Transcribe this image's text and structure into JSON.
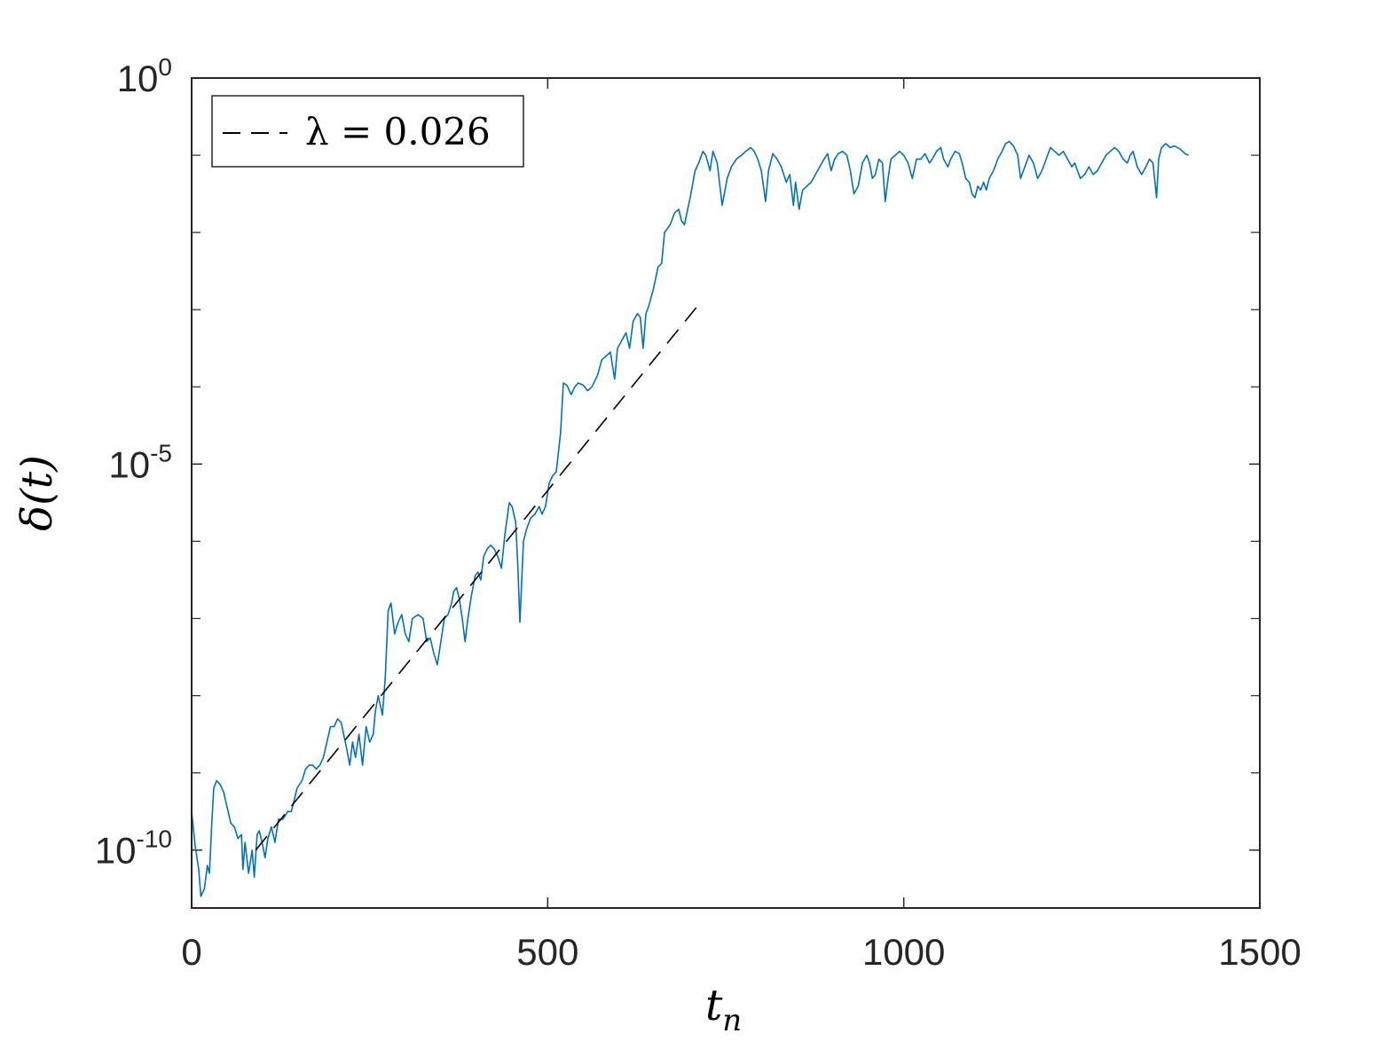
{
  "chart_data": {
    "type": "line",
    "xlabel": "t",
    "xlabel_sub": "n",
    "ylabel": "δ(t)",
    "xlim": [
      0,
      1500
    ],
    "ylim_log10": [
      -10.75,
      0
    ],
    "yscale": "log",
    "x_ticks": [
      {
        "value": 0,
        "label": "0"
      },
      {
        "value": 500,
        "label": "500"
      },
      {
        "value": 1000,
        "label": "1000"
      },
      {
        "value": 1500,
        "label": "1500"
      }
    ],
    "y_ticks": [
      {
        "log10": 0,
        "base": "10",
        "exp": "0"
      },
      {
        "log10": -5,
        "base": "10",
        "exp": "-5"
      },
      {
        "log10": -10,
        "base": "10",
        "exp": "-10"
      }
    ],
    "y_minor_log10": [
      -1,
      -2,
      -3,
      -4,
      -6,
      -7,
      -8,
      -9
    ],
    "grid": false,
    "legend": {
      "position": "top-left",
      "entries": [
        {
          "text": "λ = 0.026",
          "style": "dashed",
          "color": "#000000"
        }
      ]
    },
    "series": [
      {
        "name": "δ(t)",
        "color": "#0072BD",
        "points": [
          [
            0,
            -9.5
          ],
          [
            5,
            -9.95
          ],
          [
            10,
            -10.25
          ],
          [
            13,
            -10.6
          ],
          [
            18,
            -10.5
          ],
          [
            22,
            -10.2
          ],
          [
            25,
            -10.3
          ],
          [
            28,
            -9.7
          ],
          [
            31,
            -9.2
          ],
          [
            35,
            -9.1
          ],
          [
            40,
            -9.15
          ],
          [
            45,
            -9.25
          ],
          [
            50,
            -9.45
          ],
          [
            55,
            -9.65
          ],
          [
            60,
            -9.7
          ],
          [
            65,
            -9.85
          ],
          [
            70,
            -9.8
          ],
          [
            72,
            -10.25
          ],
          [
            75,
            -9.9
          ],
          [
            80,
            -10.3
          ],
          [
            85,
            -10.0
          ],
          [
            88,
            -10.35
          ],
          [
            92,
            -9.8
          ],
          [
            95,
            -9.75
          ],
          [
            100,
            -9.95
          ],
          [
            103,
            -10.1
          ],
          [
            107,
            -9.85
          ],
          [
            112,
            -9.7
          ],
          [
            117,
            -9.9
          ],
          [
            122,
            -9.6
          ],
          [
            128,
            -9.6
          ],
          [
            135,
            -9.5
          ],
          [
            140,
            -9.5
          ],
          [
            148,
            -9.2
          ],
          [
            155,
            -9.1
          ],
          [
            160,
            -8.95
          ],
          [
            165,
            -8.9
          ],
          [
            170,
            -8.9
          ],
          [
            175,
            -8.95
          ],
          [
            180,
            -8.9
          ],
          [
            185,
            -8.8
          ],
          [
            190,
            -8.6
          ],
          [
            195,
            -8.4
          ],
          [
            200,
            -8.4
          ],
          [
            205,
            -8.3
          ],
          [
            210,
            -8.35
          ],
          [
            218,
            -8.7
          ],
          [
            222,
            -8.9
          ],
          [
            226,
            -8.6
          ],
          [
            230,
            -8.8
          ],
          [
            235,
            -8.5
          ],
          [
            240,
            -8.9
          ],
          [
            245,
            -8.4
          ],
          [
            250,
            -8.6
          ],
          [
            255,
            -8.5
          ],
          [
            258,
            -8.2
          ],
          [
            262,
            -8.0
          ],
          [
            268,
            -8.25
          ],
          [
            272,
            -7.75
          ],
          [
            276,
            -6.9
          ],
          [
            280,
            -6.8
          ],
          [
            285,
            -7.2
          ],
          [
            290,
            -7.05
          ],
          [
            295,
            -6.95
          ],
          [
            300,
            -7.2
          ],
          [
            305,
            -7.3
          ],
          [
            310,
            -7.0
          ],
          [
            318,
            -6.95
          ],
          [
            325,
            -7.0
          ],
          [
            330,
            -7.3
          ],
          [
            335,
            -7.25
          ],
          [
            340,
            -7.45
          ],
          [
            345,
            -7.6
          ],
          [
            350,
            -7.3
          ],
          [
            355,
            -7.0
          ],
          [
            360,
            -6.95
          ],
          [
            365,
            -6.8
          ],
          [
            368,
            -6.65
          ],
          [
            372,
            -6.6
          ],
          [
            376,
            -6.75
          ],
          [
            380,
            -7.0
          ],
          [
            384,
            -7.3
          ],
          [
            388,
            -7.0
          ],
          [
            393,
            -6.7
          ],
          [
            398,
            -6.45
          ],
          [
            402,
            -6.4
          ],
          [
            406,
            -6.5
          ],
          [
            410,
            -6.2
          ],
          [
            415,
            -6.1
          ],
          [
            420,
            -6.05
          ],
          [
            425,
            -6.1
          ],
          [
            430,
            -6.2
          ],
          [
            435,
            -6.35
          ],
          [
            440,
            -5.9
          ],
          [
            446,
            -5.5
          ],
          [
            450,
            -5.55
          ],
          [
            455,
            -5.75
          ],
          [
            458,
            -6.3
          ],
          [
            461,
            -7.05
          ],
          [
            466,
            -6.0
          ],
          [
            470,
            -5.85
          ],
          [
            476,
            -5.7
          ],
          [
            482,
            -5.65
          ],
          [
            488,
            -5.55
          ],
          [
            492,
            -5.65
          ],
          [
            497,
            -5.55
          ],
          [
            502,
            -5.25
          ],
          [
            507,
            -5.15
          ],
          [
            512,
            -5.1
          ],
          [
            518,
            -4.6
          ],
          [
            522,
            -3.95
          ],
          [
            527,
            -3.98
          ],
          [
            533,
            -4.1
          ],
          [
            538,
            -4.0
          ],
          [
            543,
            -3.95
          ],
          [
            550,
            -3.98
          ],
          [
            556,
            -4.05
          ],
          [
            562,
            -4.0
          ],
          [
            570,
            -3.85
          ],
          [
            576,
            -3.65
          ],
          [
            582,
            -3.6
          ],
          [
            588,
            -3.55
          ],
          [
            594,
            -3.9
          ],
          [
            598,
            -3.5
          ],
          [
            604,
            -3.4
          ],
          [
            610,
            -3.3
          ],
          [
            615,
            -3.5
          ],
          [
            620,
            -3.15
          ],
          [
            626,
            -3.05
          ],
          [
            630,
            -3.1
          ],
          [
            634,
            -3.5
          ],
          [
            638,
            -3.05
          ],
          [
            642,
            -2.95
          ],
          [
            648,
            -2.75
          ],
          [
            655,
            -2.45
          ],
          [
            660,
            -2.4
          ],
          [
            664,
            -2.0
          ],
          [
            672,
            -1.9
          ],
          [
            678,
            -1.75
          ],
          [
            684,
            -1.7
          ],
          [
            688,
            -1.85
          ],
          [
            692,
            -1.9
          ],
          [
            700,
            -1.55
          ],
          [
            707,
            -1.2
          ],
          [
            712,
            -1.1
          ],
          [
            718,
            -0.95
          ],
          [
            722,
            -1.0
          ],
          [
            728,
            -1.2
          ],
          [
            732,
            -0.95
          ],
          [
            738,
            -1.1
          ],
          [
            745,
            -1.65
          ],
          [
            752,
            -1.3
          ],
          [
            758,
            -1.15
          ],
          [
            765,
            -1.05
          ],
          [
            772,
            -1.0
          ],
          [
            778,
            -0.95
          ],
          [
            785,
            -0.9
          ],
          [
            790,
            -0.95
          ],
          [
            795,
            -1.05
          ],
          [
            800,
            -1.2
          ],
          [
            803,
            -1.4
          ],
          [
            806,
            -1.6
          ],
          [
            810,
            -1.2
          ],
          [
            816,
            -0.98
          ],
          [
            822,
            -1.05
          ],
          [
            828,
            -1.15
          ],
          [
            835,
            -1.35
          ],
          [
            840,
            -1.25
          ],
          [
            845,
            -1.65
          ],
          [
            848,
            -1.35
          ],
          [
            853,
            -1.7
          ],
          [
            858,
            -1.45
          ],
          [
            864,
            -1.4
          ],
          [
            870,
            -1.35
          ],
          [
            876,
            -1.25
          ],
          [
            882,
            -1.15
          ],
          [
            888,
            -1.05
          ],
          [
            893,
            -0.98
          ],
          [
            898,
            -1.2
          ],
          [
            903,
            -1.05
          ],
          [
            908,
            -0.98
          ],
          [
            914,
            -0.95
          ],
          [
            920,
            -1.0
          ],
          [
            925,
            -1.2
          ],
          [
            930,
            -1.5
          ],
          [
            936,
            -1.4
          ],
          [
            942,
            -1.1
          ],
          [
            948,
            -1.0
          ],
          [
            952,
            -1.1
          ],
          [
            956,
            -1.3
          ],
          [
            960,
            -1.25
          ],
          [
            965,
            -1.05
          ],
          [
            970,
            -1.1
          ],
          [
            974,
            -1.6
          ],
          [
            978,
            -1.3
          ],
          [
            982,
            -1.05
          ],
          [
            988,
            -1.0
          ],
          [
            994,
            -0.95
          ],
          [
            1000,
            -1.0
          ],
          [
            1006,
            -1.1
          ],
          [
            1012,
            -1.3
          ],
          [
            1018,
            -1.05
          ],
          [
            1024,
            -1.05
          ],
          [
            1030,
            -0.98
          ],
          [
            1036,
            -1.1
          ],
          [
            1040,
            -1.05
          ],
          [
            1046,
            -0.95
          ],
          [
            1052,
            -0.9
          ],
          [
            1056,
            -1.05
          ],
          [
            1062,
            -1.15
          ],
          [
            1066,
            -1.05
          ],
          [
            1072,
            -0.95
          ],
          [
            1078,
            -0.98
          ],
          [
            1082,
            -1.1
          ],
          [
            1087,
            -1.3
          ],
          [
            1092,
            -1.35
          ],
          [
            1096,
            -1.5
          ],
          [
            1100,
            -1.55
          ],
          [
            1104,
            -1.4
          ],
          [
            1108,
            -1.45
          ],
          [
            1112,
            -1.35
          ],
          [
            1116,
            -1.45
          ],
          [
            1120,
            -1.3
          ],
          [
            1126,
            -1.2
          ],
          [
            1132,
            -1.05
          ],
          [
            1138,
            -0.95
          ],
          [
            1143,
            -0.85
          ],
          [
            1148,
            -0.82
          ],
          [
            1154,
            -0.88
          ],
          [
            1160,
            -1.0
          ],
          [
            1164,
            -1.3
          ],
          [
            1170,
            -1.15
          ],
          [
            1176,
            -1.0
          ],
          [
            1182,
            -1.1
          ],
          [
            1188,
            -1.3
          ],
          [
            1194,
            -1.2
          ],
          [
            1200,
            -1.05
          ],
          [
            1206,
            -0.9
          ],
          [
            1212,
            -0.95
          ],
          [
            1218,
            -1.0
          ],
          [
            1224,
            -0.95
          ],
          [
            1230,
            -1.05
          ],
          [
            1236,
            -1.15
          ],
          [
            1240,
            -1.1
          ],
          [
            1244,
            -1.2
          ],
          [
            1248,
            -1.3
          ],
          [
            1254,
            -1.25
          ],
          [
            1260,
            -1.15
          ],
          [
            1266,
            -1.25
          ],
          [
            1272,
            -1.2
          ],
          [
            1278,
            -1.1
          ],
          [
            1284,
            -1.0
          ],
          [
            1290,
            -0.95
          ],
          [
            1296,
            -0.9
          ],
          [
            1302,
            -0.95
          ],
          [
            1308,
            -1.05
          ],
          [
            1314,
            -1.1
          ],
          [
            1318,
            -1.0
          ],
          [
            1322,
            -0.95
          ],
          [
            1328,
            -1.15
          ],
          [
            1334,
            -1.25
          ],
          [
            1340,
            -1.15
          ],
          [
            1345,
            -1.05
          ],
          [
            1350,
            -1.1
          ],
          [
            1355,
            -1.55
          ],
          [
            1358,
            -1.05
          ],
          [
            1362,
            -0.9
          ],
          [
            1368,
            -0.85
          ],
          [
            1374,
            -0.9
          ],
          [
            1380,
            -0.88
          ],
          [
            1388,
            -0.92
          ],
          [
            1395,
            -0.98
          ],
          [
            1400,
            -1.0
          ]
        ]
      }
    ],
    "fit_line": {
      "x": [
        90,
        715
      ],
      "log10_y": [
        -10.0,
        -2.9
      ],
      "style": "dashed",
      "color": "#000000"
    }
  }
}
